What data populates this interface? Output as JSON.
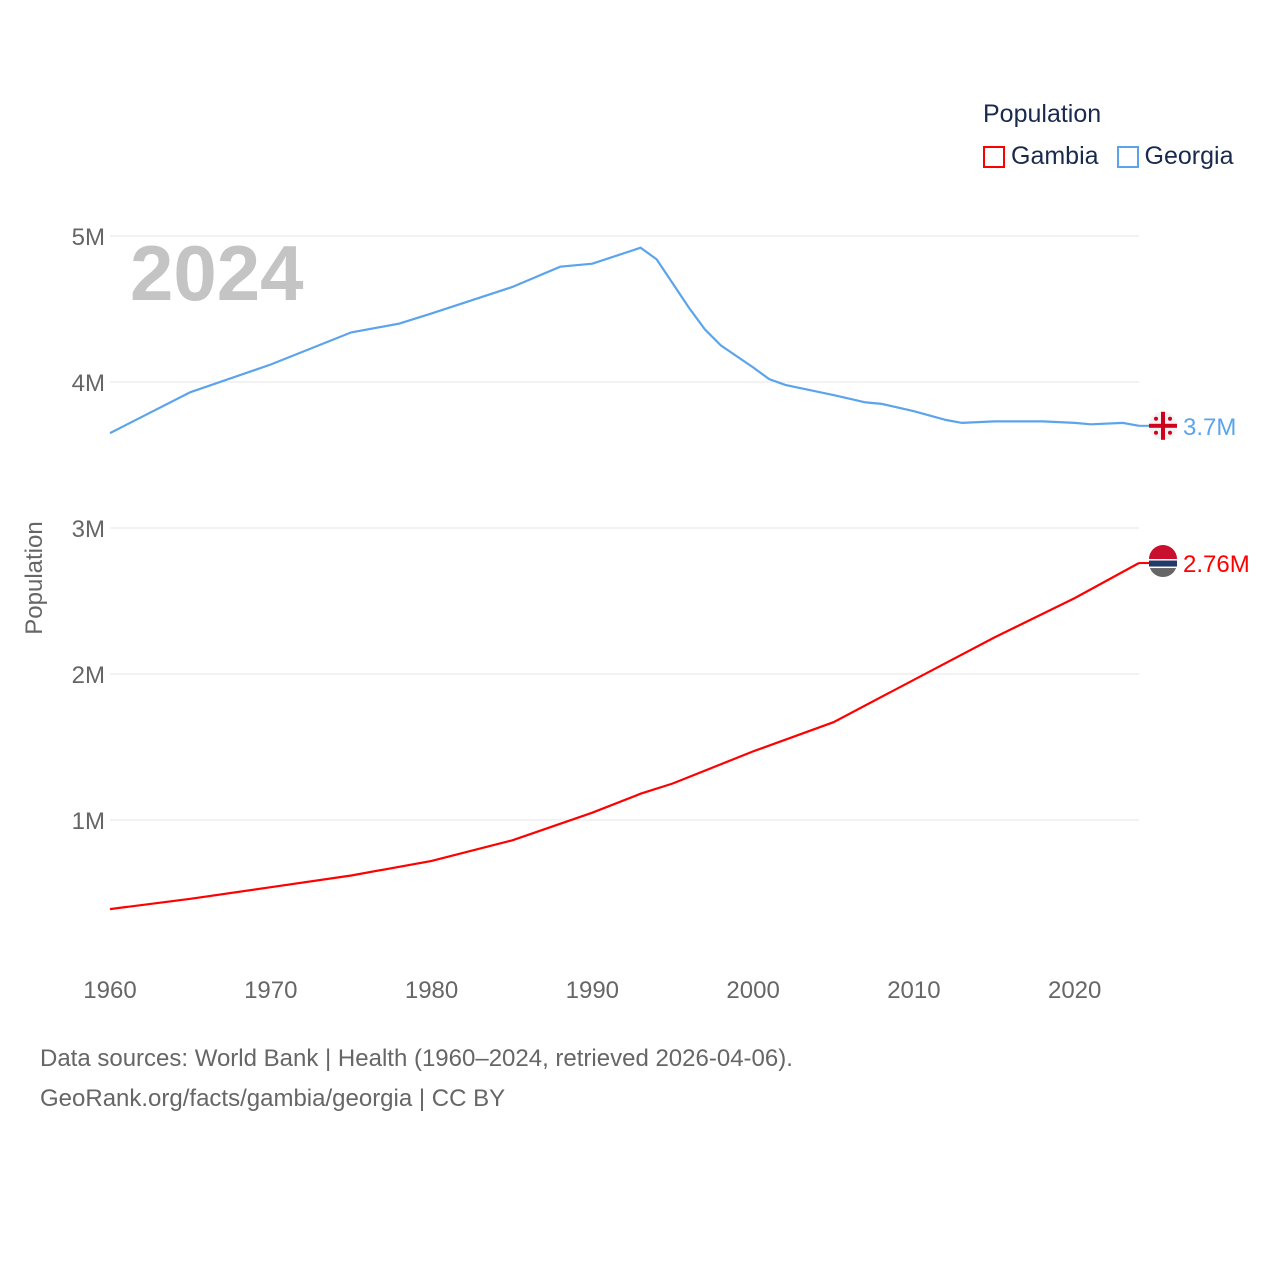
{
  "chart_data": {
    "type": "line",
    "title": "Population",
    "ylabel": "Population",
    "xlabel": "",
    "year_label": "2024",
    "xlim": [
      1960,
      2024
    ],
    "ylim": [
      0,
      5000000
    ],
    "x_ticks": [
      1960,
      1970,
      1980,
      1990,
      2000,
      2010,
      2020
    ],
    "y_ticks": [
      {
        "v": 1000000,
        "label": "1M"
      },
      {
        "v": 2000000,
        "label": "2M"
      },
      {
        "v": 3000000,
        "label": "3M"
      },
      {
        "v": 4000000,
        "label": "4M"
      },
      {
        "v": 5000000,
        "label": "5M"
      }
    ],
    "grid": true,
    "legend_position": "top-right",
    "series": [
      {
        "name": "Gambia",
        "color": "#ff0000",
        "end_label": "2.76M",
        "flag": "gambia-flag",
        "x": [
          1960,
          1965,
          1970,
          1975,
          1980,
          1985,
          1990,
          1993,
          1995,
          2000,
          2005,
          2010,
          2015,
          2020,
          2024
        ],
        "y": [
          390000,
          460000,
          540000,
          620000,
          720000,
          860000,
          1050000,
          1180000,
          1250000,
          1470000,
          1670000,
          1960000,
          2250000,
          2520000,
          2760000
        ]
      },
      {
        "name": "Georgia",
        "color": "#5ba4ec",
        "end_label": "3.7M",
        "flag": "georgia-flag",
        "x": [
          1960,
          1965,
          1970,
          1975,
          1978,
          1980,
          1985,
          1988,
          1990,
          1993,
          1994,
          1996,
          1997,
          1998,
          2000,
          2001,
          2002,
          2005,
          2007,
          2008,
          2010,
          2012,
          2013,
          2015,
          2018,
          2020,
          2021,
          2023,
          2024
        ],
        "y": [
          3650000,
          3930000,
          4120000,
          4340000,
          4400000,
          4470000,
          4650000,
          4790000,
          4810000,
          4920000,
          4840000,
          4510000,
          4360000,
          4250000,
          4100000,
          4020000,
          3980000,
          3910000,
          3860000,
          3850000,
          3800000,
          3740000,
          3720000,
          3730000,
          3730000,
          3720000,
          3710000,
          3720000,
          3700000
        ]
      }
    ]
  },
  "footer": {
    "line1": "Data sources: World Bank | Health (1960–2024, retrieved 2026-04-06).",
    "line2": "GeoRank.org/facts/gambia/georgia | CC BY"
  }
}
